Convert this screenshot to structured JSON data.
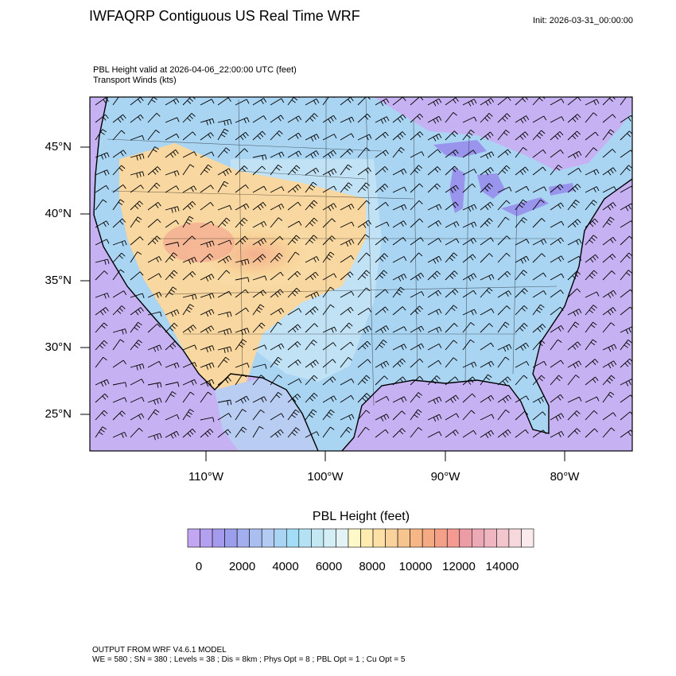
{
  "header": {
    "title": "IWFAQRP Contiguous US Real Time WRF",
    "init": "Init: 2026-03-31_00:00:00",
    "subtitle_line1": "PBL Height valid at 2026-04-06_22:00:00 UTC   (feet)",
    "subtitle_line2": "Transport Winds   (kts)"
  },
  "map": {
    "latitude_labels": [
      "45°N",
      "40°N",
      "35°N",
      "30°N",
      "25°N"
    ],
    "longitude_labels": [
      "110°W",
      "100°W",
      "90°W",
      "80°W"
    ],
    "ocean_color": "#c6b2f2",
    "low_color": "#a9d4f2",
    "high_color": "#f6c98f",
    "peak_color": "#f3a08a"
  },
  "colorbar": {
    "title": "PBL Height  (feet)",
    "tick_labels": [
      "0",
      "2000",
      "4000",
      "6000",
      "8000",
      "10000",
      "12000",
      "14000"
    ],
    "colors": [
      "#c3a6f2",
      "#b3a0f0",
      "#a59bee",
      "#9b9eec",
      "#a3aeee",
      "#abbef0",
      "#b3cbf2",
      "#a9d4f4",
      "#a3dcf6",
      "#b3e2f4",
      "#c3e8f4",
      "#d3eef4",
      "#e3f2f4",
      "#fff8c8",
      "#ffeab0",
      "#fce0a6",
      "#f8d29a",
      "#f6c48e",
      "#f6b686",
      "#f4aa82",
      "#f4a088",
      "#f49a92",
      "#ec9ca4",
      "#eca8b4",
      "#eeb6c0",
      "#f2c6cc",
      "#f6d8dc",
      "#faeaec"
    ]
  },
  "footer": {
    "line1": "OUTPUT FROM WRF V4.6.1 MODEL",
    "line2": "WE = 580 ; SN = 380 ; Levels = 38 ; Dis = 8km ; Phys Opt = 8 ; PBL Opt = 1 ; Cu Opt = 5"
  }
}
